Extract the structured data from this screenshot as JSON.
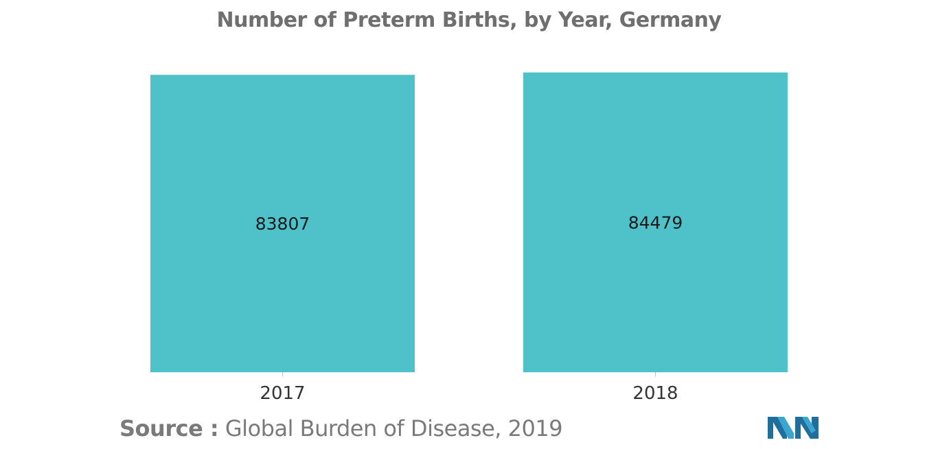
{
  "chart_data": {
    "type": "bar",
    "title": "Number of Preterm Births, by Year, Germany",
    "categories": [
      "2017",
      "2018"
    ],
    "values": [
      83807,
      84479
    ],
    "data_labels": [
      "83807",
      "84479"
    ],
    "xlabel": "",
    "ylabel": "",
    "ylim": [
      0,
      85000
    ],
    "grid": false,
    "bar_color": "#4fc2c9"
  },
  "source": {
    "label": "Source :",
    "text": "Global Burden of Disease, 2019"
  },
  "colors": {
    "title": "#6f6f6f",
    "axis": "#bdbdbd",
    "tick_text": "#333333",
    "source_text": "#7a7a7a",
    "logo_dark": "#1f6f9c",
    "logo_light": "#3aa6cf"
  }
}
